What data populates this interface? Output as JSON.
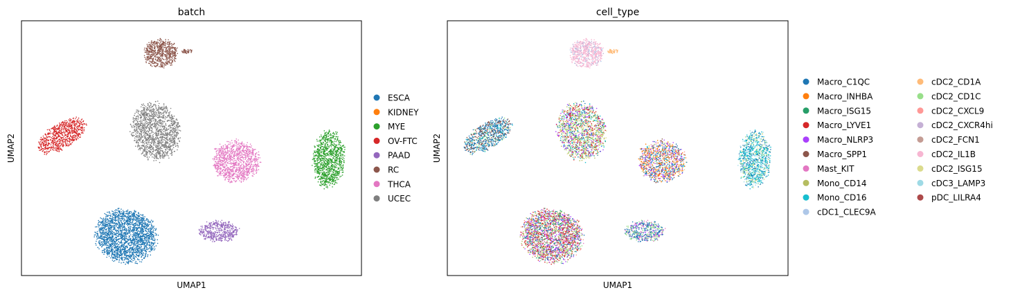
{
  "chart_data": [
    {
      "type": "scatter",
      "title": "batch",
      "xlabel": "UMAP1",
      "ylabel": "UMAP2",
      "grid": false,
      "legend_placement": "right",
      "series": [
        {
          "name": "ESCA",
          "color": "#1f77b4"
        },
        {
          "name": "KIDNEY",
          "color": "#ff7f0e"
        },
        {
          "name": "MYE",
          "color": "#2ca02c"
        },
        {
          "name": "OV-FTC",
          "color": "#d62728"
        },
        {
          "name": "PAAD",
          "color": "#9467bd"
        },
        {
          "name": "RC",
          "color": "#8c564b"
        },
        {
          "name": "THCA",
          "color": "#e377c2"
        },
        {
          "name": "UCEC",
          "color": "#7f7f7f"
        }
      ]
    },
    {
      "type": "scatter",
      "title": "cell_type",
      "xlabel": "UMAP1",
      "ylabel": "UMAP2",
      "grid": false,
      "legend_placement": "right",
      "series": [
        {
          "name": "Macro_C1QC",
          "color": "#1f77b4"
        },
        {
          "name": "Macro_INHBA",
          "color": "#ff7f0e"
        },
        {
          "name": "Macro_ISG15",
          "color": "#279e68"
        },
        {
          "name": "Macro_LYVE1",
          "color": "#d62728"
        },
        {
          "name": "Macro_NLRP3",
          "color": "#aa40fc"
        },
        {
          "name": "Macro_SPP1",
          "color": "#8c564b"
        },
        {
          "name": "Mast_KIT",
          "color": "#e377c2"
        },
        {
          "name": "Mono_CD14",
          "color": "#b5bd61"
        },
        {
          "name": "Mono_CD16",
          "color": "#17becf"
        },
        {
          "name": "cDC1_CLEC9A",
          "color": "#aec7e8"
        },
        {
          "name": "cDC2_CD1A",
          "color": "#ffbb78"
        },
        {
          "name": "cDC2_CD1C",
          "color": "#98df8a"
        },
        {
          "name": "cDC2_CXCL9",
          "color": "#ff9896"
        },
        {
          "name": "cDC2_CXCR4hi",
          "color": "#c5b0d5"
        },
        {
          "name": "cDC2_FCN1",
          "color": "#c49c94"
        },
        {
          "name": "cDC2_IL1B",
          "color": "#f7b6d2"
        },
        {
          "name": "cDC2_ISG15",
          "color": "#dbdb8d"
        },
        {
          "name": "cDC3_LAMP3",
          "color": "#9edae5"
        },
        {
          "name": "pDC_LILRA4",
          "color": "#ad494a"
        }
      ]
    }
  ]
}
